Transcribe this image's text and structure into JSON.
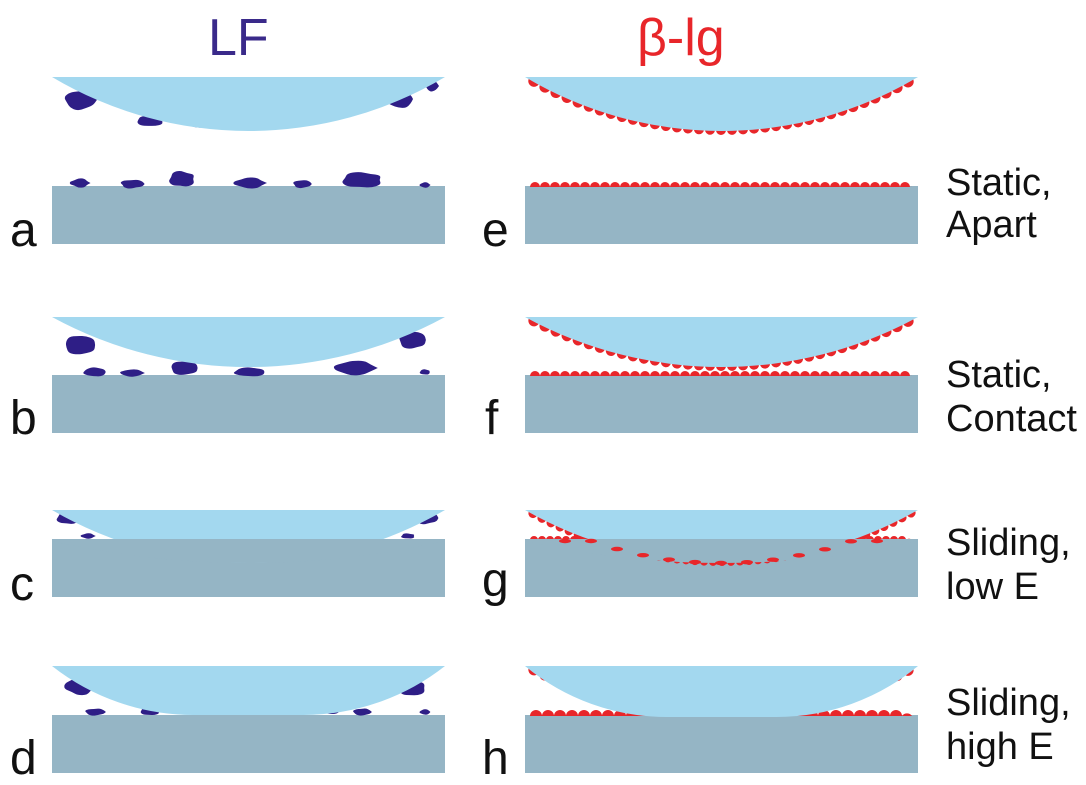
{
  "columns": [
    {
      "id": "lf",
      "title": "LF",
      "color": "#3a2a8a"
    },
    {
      "id": "blg",
      "title": "β-lg",
      "color": "#e8262a"
    }
  ],
  "rows": [
    {
      "state": "static-apart",
      "label_line1": "Static,",
      "label_line2": "Apart",
      "letter_lf": "a",
      "letter_blg": "e"
    },
    {
      "state": "static-contact",
      "label_line1": "Static,",
      "label_line2": "Contact",
      "letter_lf": "b",
      "letter_blg": "f"
    },
    {
      "state": "sliding-low",
      "label_line1": "Sliding,",
      "label_line2": "low E",
      "letter_lf": "c",
      "letter_blg": "g"
    },
    {
      "state": "sliding-high",
      "label_line1": "Sliding,",
      "label_line2": "high E",
      "letter_lf": "d",
      "letter_blg": "h"
    }
  ],
  "colors": {
    "lens": "#a3d8ef",
    "substrate": "#95b5c5",
    "lf_protein": "#2e1e86",
    "blg_protein": "#e8262a",
    "text": "#111111"
  }
}
